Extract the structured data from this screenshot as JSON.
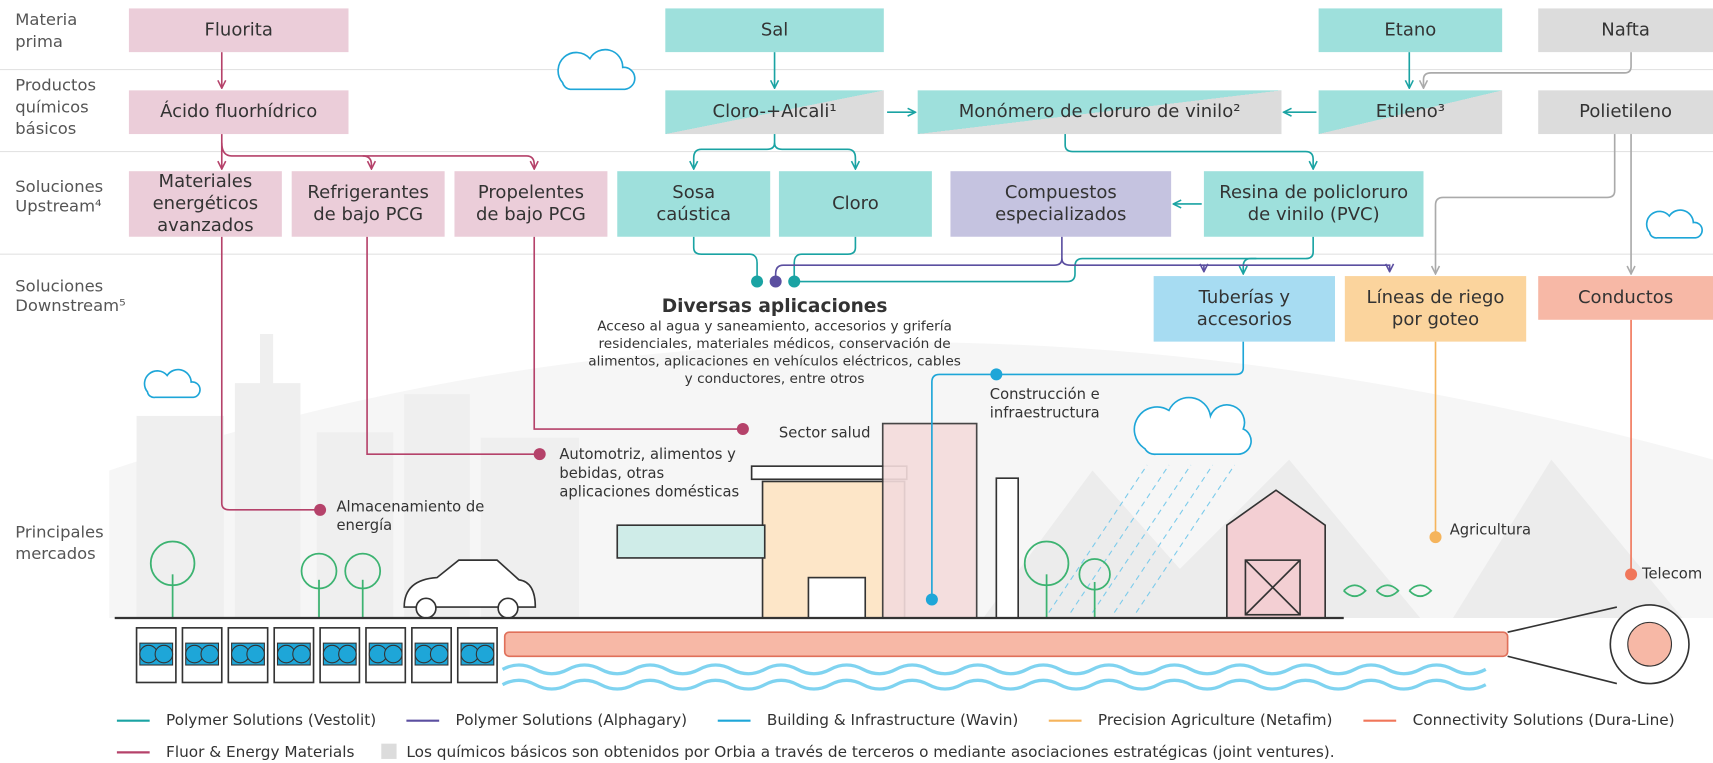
{
  "row_labels": [
    [
      "Materia",
      "prima"
    ],
    [
      "Productos",
      "químicos",
      "básicos"
    ],
    [
      "Soluciones",
      "Upstream⁴"
    ],
    [
      "Soluciones",
      "Downstream⁵"
    ],
    [
      "Principales",
      "mercados"
    ]
  ],
  "nodes": [
    {
      "label": [
        "Fluorita"
      ]
    },
    {
      "label": [
        "Sal"
      ]
    },
    {
      "label": [
        "Etano"
      ]
    },
    {
      "label": [
        "Nafta"
      ]
    },
    {
      "label": [
        "Ácido fluorhídrico"
      ]
    },
    {
      "label": [
        "Cloro-+Alcali¹"
      ]
    },
    {
      "label": [
        "Monómero de cloruro de vinilo²"
      ]
    },
    {
      "label": [
        "Etileno³"
      ]
    },
    {
      "label": [
        "Polietileno"
      ]
    },
    {
      "label": [
        "Materiales",
        "energéticos",
        "avanzados"
      ]
    },
    {
      "label": [
        "Refrigerantes",
        "de bajo PCG"
      ]
    },
    {
      "label": [
        "Propelentes",
        "de bajo PCG"
      ]
    },
    {
      "label": [
        "Sosa",
        "caústica"
      ]
    },
    {
      "label": [
        "Cloro"
      ]
    },
    {
      "label": [
        "Compuestos",
        "especializados"
      ]
    },
    {
      "label": [
        "Resina de policloruro",
        "de vinilo (PVC)"
      ]
    },
    {
      "label": [
        "Tuberías y",
        "accesorios"
      ]
    },
    {
      "label": [
        "Líneas de riego",
        "por goteo"
      ]
    },
    {
      "label": [
        "Conductos"
      ]
    }
  ],
  "applications": {
    "title": "Diversas aplicaciones",
    "description": [
      "Acceso al agua y saneamiento, accesorios y grifería",
      "residenciales, materiales médicos, conservación de",
      "alimentos, aplicaciones en vehículos eléctricos, cables",
      "y conductores, entre otros"
    ]
  },
  "markets": [
    {
      "label": [
        "Almacenamiento de",
        "energía"
      ]
    },
    {
      "label": [
        "Automotriz, alimentos y",
        "bebidas, otras",
        "aplicaciones domésticas"
      ]
    },
    {
      "label": [
        "Sector salud"
      ]
    },
    {
      "label": [
        "Construcción e",
        "infraestructura"
      ]
    },
    {
      "label": [
        "Agricultura"
      ]
    },
    {
      "label": [
        "Telecom"
      ]
    }
  ],
  "legend": [
    {
      "name": "Polymer Solutions (Vestolit)",
      "color": "#1aa3a3"
    },
    {
      "name": "Polymer Solutions (Alphagary)",
      "color": "#5b4fa0"
    },
    {
      "name": "Building & Infrastructure (Wavin)",
      "color": "#1ea6d8"
    },
    {
      "name": "Precision Agriculture (Netafim)",
      "color": "#f5b45c"
    },
    {
      "name": "Connectivity Solutions (Dura-Line)",
      "color": "#f0765a"
    },
    {
      "name": "Fluor & Energy Materials",
      "color": "#b5426a"
    }
  ],
  "note": "Los químicos básicos son obtenidos por Orbia a través de terceros o mediante asociaciones estratégicas (joint ventures)."
}
